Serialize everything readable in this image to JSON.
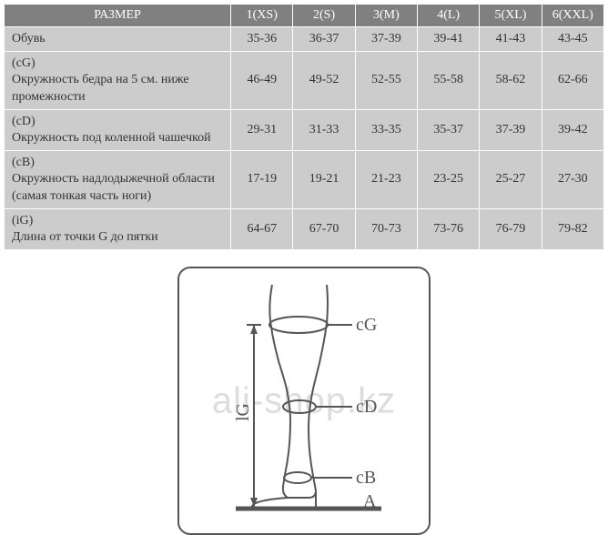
{
  "table": {
    "header": [
      "РАЗМЕР",
      "1(XS)",
      "2(S)",
      "3(M)",
      "4(L)",
      "5(XL)",
      "6(XXL)"
    ],
    "rows": [
      {
        "label": "Обувь",
        "vals": [
          "35-36",
          "36-37",
          "37-39",
          "39-41",
          "41-43",
          "43-45"
        ]
      },
      {
        "label": "(cG)\nОкружность бедра на 5 см. ниже промежности",
        "vals": [
          "46-49",
          "49-52",
          "52-55",
          "55-58",
          "58-62",
          "62-66"
        ]
      },
      {
        "label": "(cD)\nОкружность под коленной чашечкой",
        "vals": [
          "29-31",
          "31-33",
          "33-35",
          "35-37",
          "37-39",
          "39-42"
        ]
      },
      {
        "label": "(cB)\nОкружность надлодыжечной области (самая тонкая часть ноги)",
        "vals": [
          "17-19",
          "19-21",
          "21-23",
          "23-25",
          "25-27",
          "27-30"
        ]
      },
      {
        "label": "(iG)\nДлина от точки G до пятки",
        "vals": [
          "64-67",
          "67-70",
          "70-73",
          "73-76",
          "76-79",
          "79-82"
        ]
      }
    ],
    "header_bg": "#808080",
    "header_fg": "#ffffff",
    "cell_bg": "#cccccc",
    "cell_fg": "#333333",
    "border_color": "#ffffff",
    "font_size": 14
  },
  "diagram": {
    "labels": {
      "cG": "cG",
      "cD": "cD",
      "cB": "cB",
      "A": "A",
      "lG": "lG"
    },
    "stroke": "#555555",
    "frame_radius": 14
  },
  "watermark": "ali-shop.kz"
}
